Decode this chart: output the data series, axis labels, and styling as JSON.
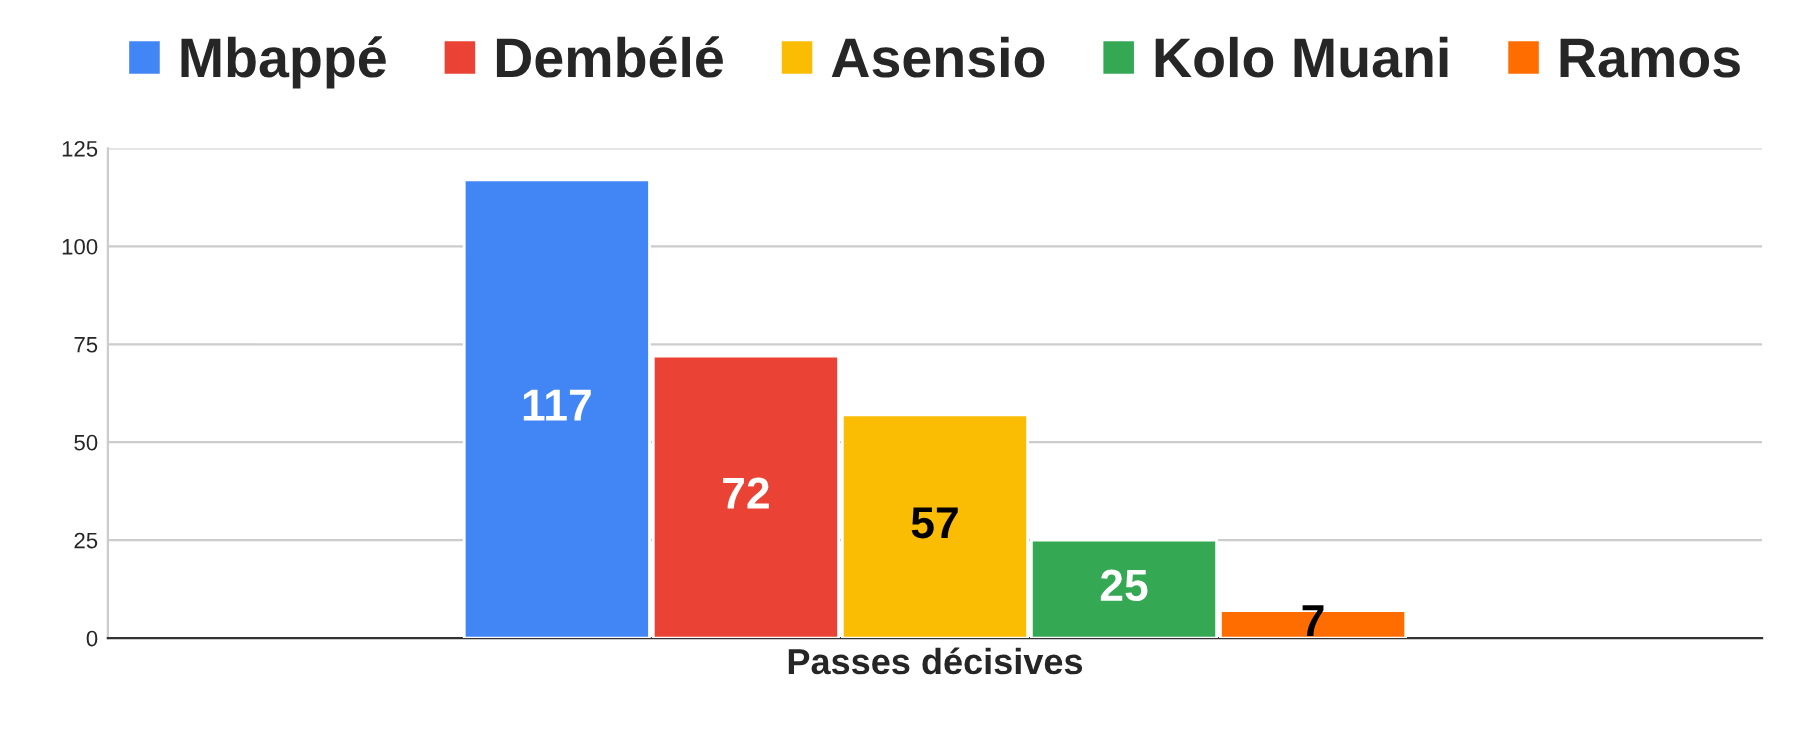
{
  "chart_data": {
    "type": "bar",
    "categories": [
      "Passes décisives"
    ],
    "series": [
      {
        "name": "Mbappé",
        "color": "#4285f4",
        "values": [
          117
        ]
      },
      {
        "name": "Dembélé",
        "color": "#ea4335",
        "values": [
          72
        ]
      },
      {
        "name": "Asensio",
        "color": "#fbbc04",
        "values": [
          57
        ]
      },
      {
        "name": "Kolo Muani",
        "color": "#34a853",
        "values": [
          25
        ]
      },
      {
        "name": "Ramos",
        "color": "#ff6d01",
        "values": [
          7
        ]
      }
    ],
    "ylim": [
      0,
      125
    ],
    "yticks": [
      0,
      25,
      50,
      75,
      100,
      125
    ],
    "grid": "y",
    "legend": "top",
    "data_labels": true
  }
}
